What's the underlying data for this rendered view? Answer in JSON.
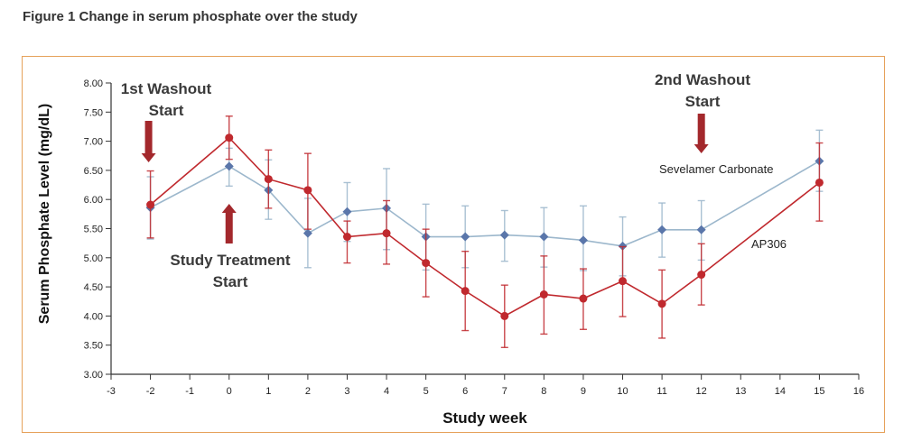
{
  "figure_title": "Figure 1 Change in serum phosphate over the study",
  "chart_data": {
    "type": "line",
    "title": "",
    "xlabel": "Study week",
    "ylabel": "Serum Phosphate Level (mg/dL)",
    "xlim": [
      -3,
      16
    ],
    "ylim": [
      3.0,
      8.0
    ],
    "x_ticks": [
      -3,
      -2,
      -1,
      0,
      1,
      2,
      3,
      4,
      5,
      6,
      7,
      8,
      9,
      10,
      11,
      12,
      13,
      14,
      15,
      16
    ],
    "y_ticks": [
      "3.00",
      "3.50",
      "4.00",
      "4.50",
      "5.00",
      "5.50",
      "6.00",
      "6.50",
      "7.00",
      "7.50",
      "8.00"
    ],
    "grid": false,
    "series": [
      {
        "name": "Sevelamer Carbonate",
        "color": "#5a76aa",
        "line_color": "#9cb7cc",
        "marker": "diamond",
        "x": [
          -2,
          0,
          1,
          2,
          3,
          4,
          5,
          6,
          7,
          8,
          9,
          10,
          11,
          12,
          15
        ],
        "y": [
          5.86,
          6.57,
          6.16,
          5.42,
          5.79,
          5.85,
          5.36,
          5.36,
          5.39,
          5.36,
          5.3,
          5.2,
          5.48,
          5.48,
          6.66
        ],
        "err_low": [
          5.32,
          6.23,
          5.66,
          4.83,
          5.28,
          5.14,
          4.79,
          4.83,
          4.94,
          4.84,
          4.78,
          4.69,
          5.01,
          4.96,
          6.14
        ],
        "err_high": [
          6.39,
          6.88,
          6.68,
          6.02,
          6.29,
          6.53,
          5.92,
          5.89,
          5.81,
          5.86,
          5.89,
          5.7,
          5.94,
          5.98,
          7.19
        ]
      },
      {
        "name": "AP306",
        "color": "#c0292e",
        "line_color": "#c0292e",
        "marker": "circle",
        "x": [
          -2,
          0,
          1,
          2,
          3,
          4,
          5,
          6,
          7,
          8,
          9,
          10,
          11,
          12,
          15
        ],
        "y": [
          5.91,
          7.06,
          6.35,
          6.16,
          5.36,
          5.42,
          4.91,
          4.43,
          4.0,
          4.37,
          4.3,
          4.6,
          4.21,
          4.71,
          6.29
        ],
        "err_low": [
          5.34,
          6.69,
          5.85,
          5.49,
          4.91,
          4.89,
          4.33,
          3.75,
          3.46,
          3.69,
          3.77,
          3.99,
          3.62,
          4.19,
          5.63
        ],
        "err_high": [
          6.49,
          7.43,
          6.85,
          6.79,
          5.63,
          5.98,
          5.49,
          5.11,
          4.53,
          5.03,
          4.81,
          5.19,
          4.79,
          5.24,
          6.97
        ]
      }
    ],
    "annotations": [
      {
        "text_lines": [
          "1st Washout",
          "Start"
        ],
        "x": -2,
        "arrow": "down"
      },
      {
        "text_lines": [
          "Study Treatment",
          "Start"
        ],
        "x": 0,
        "arrow": "up"
      },
      {
        "text_lines": [
          "2nd Washout",
          "Start"
        ],
        "x": 12,
        "arrow": "down"
      }
    ]
  }
}
